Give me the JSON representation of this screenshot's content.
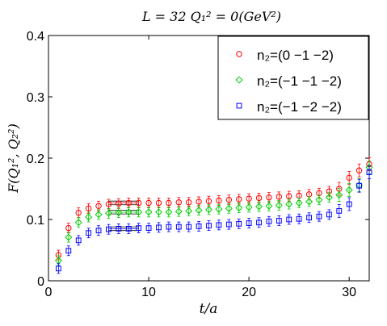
{
  "chart_data": {
    "type": "scatter",
    "title": "L = 32  Q₁² = 0(GeV²)",
    "xlabel": "t/a",
    "ylabel": "F(Q₁², Q₂²)",
    "xlim": [
      0,
      32
    ],
    "ylim": [
      0,
      0.4
    ],
    "x_ticks": [
      "0",
      "10",
      "20",
      "30"
    ],
    "y_ticks": [
      "0",
      "0.1",
      "0.2",
      "0.3",
      "0.4"
    ],
    "legend_position": "top-right",
    "grid": false,
    "series": [
      {
        "name": "n₂=(0 −1 −2)",
        "color": "#ff0000",
        "marker": "circle",
        "x": [
          1,
          2,
          3,
          4,
          5,
          6,
          7,
          8,
          9,
          10,
          11,
          12,
          13,
          14,
          15,
          16,
          17,
          18,
          19,
          20,
          21,
          22,
          23,
          24,
          25,
          26,
          27,
          28,
          29,
          30,
          31,
          32
        ],
        "y": [
          0.042,
          0.086,
          0.111,
          0.118,
          0.122,
          0.125,
          0.126,
          0.127,
          0.127,
          0.127,
          0.127,
          0.127,
          0.128,
          0.128,
          0.129,
          0.13,
          0.131,
          0.132,
          0.133,
          0.134,
          0.135,
          0.136,
          0.137,
          0.138,
          0.139,
          0.141,
          0.143,
          0.146,
          0.15,
          0.168,
          0.18,
          0.19
        ]
      },
      {
        "name": "n₂=(−1 −1 −2)",
        "color": "#00cc00",
        "marker": "diamond",
        "x": [
          1,
          2,
          3,
          4,
          5,
          6,
          7,
          8,
          9,
          10,
          11,
          12,
          13,
          14,
          15,
          16,
          17,
          18,
          19,
          20,
          21,
          22,
          23,
          24,
          25,
          26,
          27,
          28,
          29,
          30,
          31,
          32
        ],
        "y": [
          0.033,
          0.071,
          0.095,
          0.104,
          0.108,
          0.11,
          0.111,
          0.112,
          0.112,
          0.112,
          0.112,
          0.112,
          0.113,
          0.114,
          0.115,
          0.116,
          0.117,
          0.118,
          0.119,
          0.12,
          0.121,
          0.122,
          0.123,
          0.125,
          0.127,
          0.129,
          0.132,
          0.136,
          0.14,
          0.148,
          0.156,
          0.185
        ]
      },
      {
        "name": "n₂=(−1 −2 −2)",
        "color": "#0000ff",
        "marker": "square",
        "x": [
          1,
          2,
          3,
          4,
          5,
          6,
          7,
          8,
          9,
          10,
          11,
          12,
          13,
          14,
          15,
          16,
          17,
          18,
          19,
          20,
          21,
          22,
          23,
          24,
          25,
          26,
          27,
          28,
          29,
          30,
          31,
          32
        ],
        "y": [
          0.02,
          0.049,
          0.066,
          0.078,
          0.082,
          0.084,
          0.085,
          0.085,
          0.086,
          0.086,
          0.087,
          0.088,
          0.088,
          0.088,
          0.089,
          0.09,
          0.091,
          0.092,
          0.093,
          0.094,
          0.095,
          0.097,
          0.098,
          0.1,
          0.101,
          0.103,
          0.105,
          0.108,
          0.114,
          0.125,
          0.155,
          0.177
        ]
      }
    ],
    "fit_bands": [
      {
        "series": 0,
        "x": [
          6,
          9
        ],
        "y": 0.127
      },
      {
        "series": 1,
        "x": [
          6,
          9
        ],
        "y": 0.112
      },
      {
        "series": 2,
        "x": [
          6,
          9
        ],
        "y": 0.085
      }
    ]
  }
}
